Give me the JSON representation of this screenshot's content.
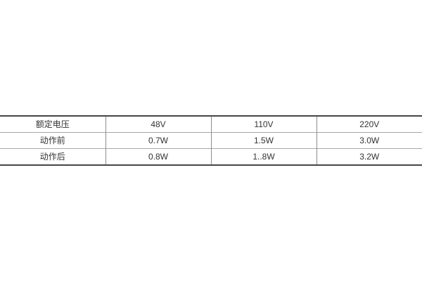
{
  "page": {
    "background_color": "#ffffff"
  },
  "table": {
    "columns": 4,
    "rows": [
      {
        "label": "额定电压",
        "values": [
          "48V",
          "110V",
          "220V"
        ]
      },
      {
        "label": "动作前",
        "values": [
          "0.7W",
          "1.5W",
          "3.0W"
        ]
      },
      {
        "label": "动作后",
        "values": [
          "0.8W",
          "1..8W",
          "3.2W"
        ]
      }
    ],
    "border_colors": {
      "outer_horizontal": "#454545",
      "inner_horizontal": "#a6a6a6",
      "vertical_divider": "#8c8c8c"
    },
    "text_color": "#333333"
  }
}
